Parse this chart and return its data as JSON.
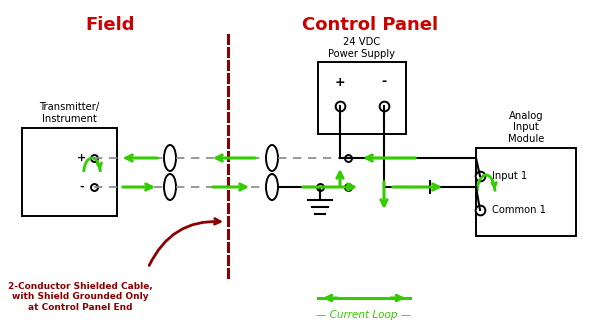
{
  "title_field": "Field",
  "title_control": "Control Panel",
  "title_color": "#cc0000",
  "bg_color": "#ffffff",
  "line_color": "#000000",
  "green_color": "#33cc00",
  "dark_red_color": "#8b0000",
  "dashed_color": "#888888",
  "transmitter_label": "Transmitter/\nInstrument",
  "power_supply_label": "24 VDC\nPower Supply",
  "analog_module_label": "Analog\nInput\nModule",
  "input1_label": "Input 1",
  "common1_label": "Common 1",
  "cable_label": "2-Conductor Shielded Cable,\nwith Shield Grounded Only\nat Control Panel End",
  "current_loop_label": "Current Loop",
  "fig_width": 6.0,
  "fig_height": 3.2,
  "dpi": 100
}
